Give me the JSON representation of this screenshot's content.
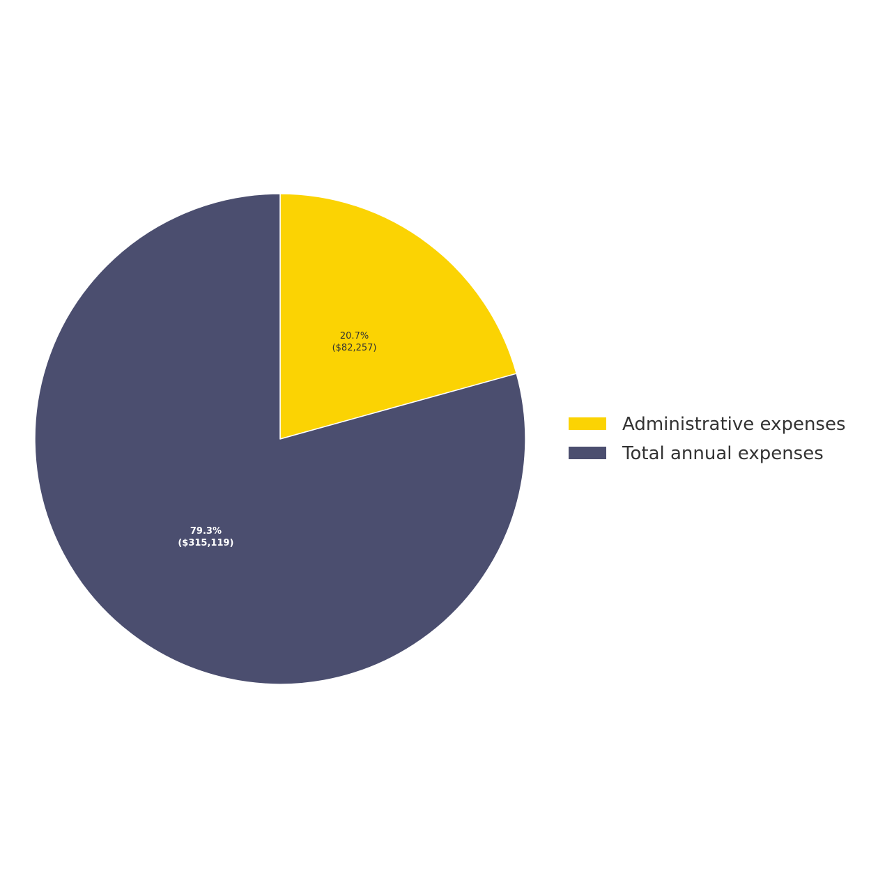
{
  "chart_data": {
    "type": "pie",
    "title": "",
    "start_angle_deg": 90,
    "direction": "clockwise",
    "legend_position": "right",
    "slices": [
      {
        "name": "Administrative expenses",
        "value": 82257,
        "percent_label": "20.7%",
        "value_label": "($82,257)",
        "color": "#FBD303",
        "label_color": "#333333",
        "label_bold": false
      },
      {
        "name": "Total annual expenses",
        "value": 315119,
        "percent_label": "79.3%",
        "value_label": "($315,119)",
        "color": "#4B4E6F",
        "label_color": "#ffffff",
        "label_bold": true
      }
    ]
  }
}
